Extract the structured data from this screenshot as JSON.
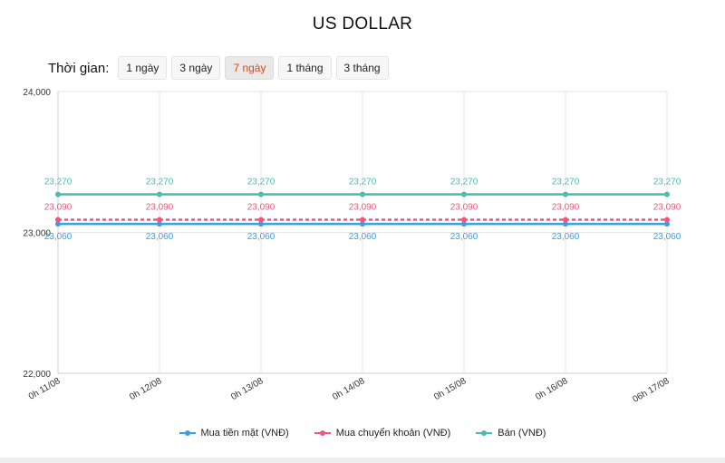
{
  "page_title": "US DOLLAR",
  "time_range": {
    "label": "Thời gian:",
    "options": [
      "1 ngày",
      "3 ngày",
      "7 ngày",
      "1 tháng",
      "3 tháng"
    ],
    "selected": "7 ngày"
  },
  "colors": {
    "accent": "#d0491d",
    "mua_tien_mat": "#3a9ee4",
    "mua_chuyen_khoan": "#f0577a",
    "ban": "#4fb9b2"
  },
  "chart_data": {
    "type": "line",
    "x": [
      "0h 11/08",
      "0h 12/08",
      "0h 13/08",
      "0h 14/08",
      "0h 15/08",
      "0h 16/08",
      "06h 17/08"
    ],
    "series": [
      {
        "name": "Mua tiền mặt (VNĐ)",
        "values": [
          23060,
          23060,
          23060,
          23060,
          23060,
          23060,
          23060
        ],
        "labels": [
          "23,060",
          "23,060",
          "23,060",
          "23,060",
          "23,060",
          "23,060",
          "23,060"
        ],
        "color": "#3a9ee4",
        "dashed": false
      },
      {
        "name": "Mua chuyển khoản (VNĐ)",
        "values": [
          23090,
          23090,
          23090,
          23090,
          23090,
          23090,
          23090
        ],
        "labels": [
          "23,090",
          "23,090",
          "23,090",
          "23,090",
          "23,090",
          "23,090",
          "23,090"
        ],
        "color": "#f0577a",
        "dashed": true
      },
      {
        "name": "Bán (VNĐ)",
        "values": [
          23270,
          23270,
          23270,
          23270,
          23270,
          23270,
          23270
        ],
        "labels": [
          "23,270",
          "23,270",
          "23,270",
          "23,270",
          "23,270",
          "23,270",
          "23,270"
        ],
        "color": "#4fb9b2",
        "dashed": false
      }
    ],
    "ylim": [
      22000,
      24000
    ],
    "yticks": [
      22000,
      23000,
      24000
    ],
    "ytick_labels": [
      "22,000",
      "23,000",
      "24,000"
    ],
    "grid": true,
    "legend_position": "bottom"
  }
}
